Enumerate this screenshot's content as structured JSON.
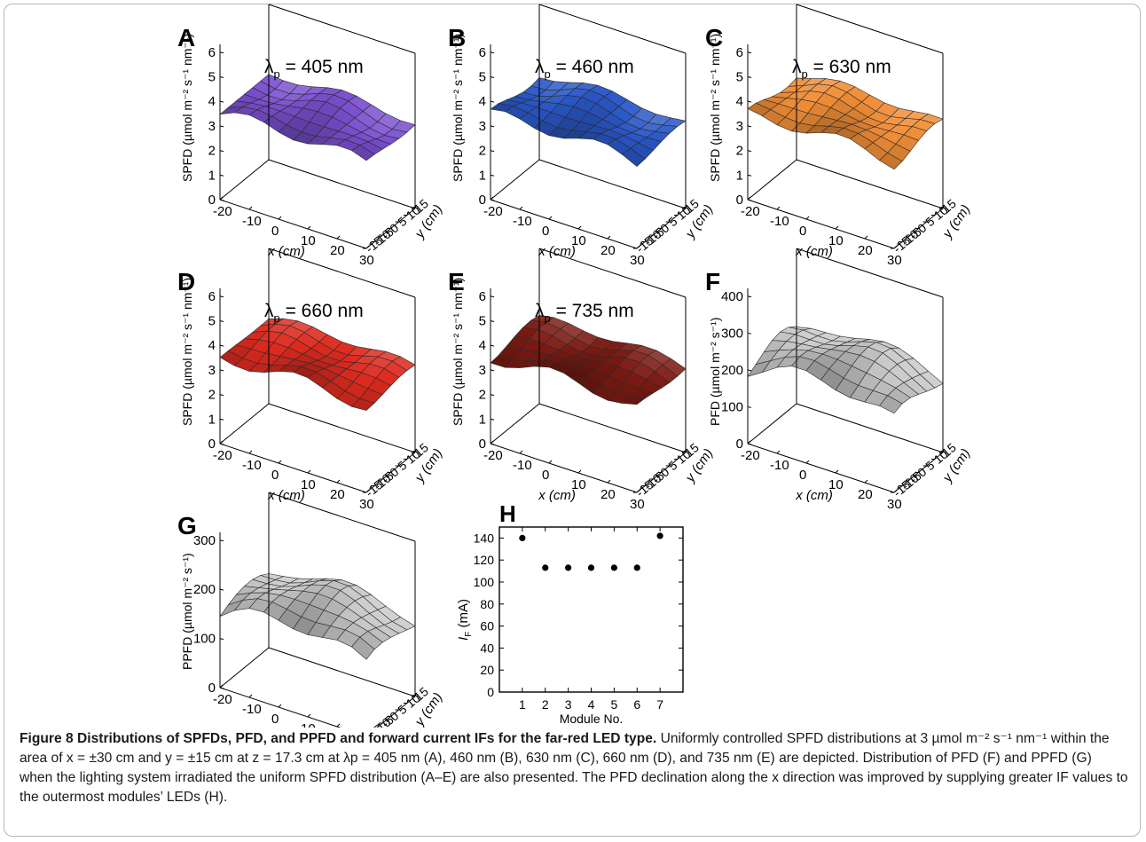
{
  "figure": {
    "panels": [
      {
        "letter": "A",
        "wavelength": "405",
        "unit": "nm",
        "color": "#7a4fd0",
        "zlabel": "SPFD (µmol m⁻² s⁻¹ nm⁻¹)",
        "zticks": [
          "0",
          "1",
          "2",
          "3",
          "4",
          "5",
          "6"
        ]
      },
      {
        "letter": "B",
        "wavelength": "460",
        "unit": "nm",
        "color": "#2a57c8",
        "zlabel": "SPFD (µmol m⁻² s⁻¹ nm⁻¹)",
        "zticks": [
          "0",
          "1",
          "2",
          "3",
          "4",
          "5",
          "6"
        ]
      },
      {
        "letter": "C",
        "wavelength": "630",
        "unit": "nm",
        "color": "#f08d36",
        "zlabel": "SPFD (µmol m⁻² s⁻¹ nm⁻¹)",
        "zticks": [
          "0",
          "1",
          "2",
          "3",
          "4",
          "5",
          "6"
        ]
      },
      {
        "letter": "D",
        "wavelength": "660",
        "unit": "nm",
        "color": "#de2a1f",
        "zlabel": "SPFD (µmol m⁻² s⁻¹ nm⁻¹)",
        "zticks": [
          "0",
          "1",
          "2",
          "3",
          "4",
          "5",
          "6"
        ]
      },
      {
        "letter": "E",
        "wavelength": "735",
        "unit": "nm",
        "color": "#7b1a12",
        "zlabel": "SPFD (µmol m⁻² s⁻¹ nm⁻¹)",
        "zticks": [
          "0",
          "1",
          "2",
          "3",
          "4",
          "5",
          "6"
        ]
      },
      {
        "letter": "F",
        "wavelength": "",
        "unit": "",
        "color": "#c9c9c9",
        "zlabel": "PFD (µmol m⁻² s⁻¹)",
        "zticks": [
          "0",
          "100",
          "200",
          "300",
          "400"
        ]
      },
      {
        "letter": "G",
        "wavelength": "",
        "unit": "",
        "color": "#c9c9c9",
        "zlabel": "PPFD (µmol m⁻² s⁻¹)",
        "zticks": [
          "0",
          "100",
          "200",
          "300"
        ]
      }
    ],
    "xlabel": "x (cm)",
    "ylabel": "y (cm)",
    "xticks": [
      "-20",
      "-10",
      "0",
      "10",
      "20",
      "30"
    ],
    "yticks": [
      "15",
      "10",
      "5",
      "0",
      "-5",
      "-10",
      "-15"
    ],
    "lambda_symbol": "λ",
    "lambda_sub": "p",
    "equals": "=",
    "panel_h": {
      "letter": "H",
      "ylabel": "I",
      "ylabel_sub": "F",
      "ylabel_unit": "(mA)",
      "xlabel": "Module No."
    }
  },
  "chart_data": {
    "type": "scatter",
    "title": "",
    "xlabel": "Module No.",
    "ylabel": "IF (mA)",
    "x": [
      1,
      2,
      3,
      4,
      5,
      6,
      7
    ],
    "y": [
      140,
      113,
      113,
      113,
      113,
      113,
      142
    ],
    "xticks": [
      "1",
      "2",
      "3",
      "4",
      "5",
      "6",
      "7"
    ],
    "yticks": [
      "0",
      "20",
      "40",
      "60",
      "80",
      "100",
      "120",
      "140"
    ],
    "xlim": [
      0,
      8
    ],
    "ylim": [
      0,
      150
    ]
  },
  "caption": {
    "bold": "Figure 8 Distributions of SPFDs, PFD, and PPFD and forward current IFs for the far-red LED type.",
    "text": "Uniformly controlled SPFD distributions at 3 µmol m⁻² s⁻¹ nm⁻¹ within the area of x = ±30 cm and y = ±15 cm at z = 17.3 cm at λp = 405 nm (A), 460 nm (B), 630 nm (C), 660 nm (D), and 735 nm (E) are depicted. Distribution of PFD (F) and PPFD (G) when the lighting system irradiated the uniform SPFD distribution (A–E) are also presented. The PFD declination along the x direction was improved by supplying greater IF values to the outermost modules’ LEDs (H)."
  }
}
